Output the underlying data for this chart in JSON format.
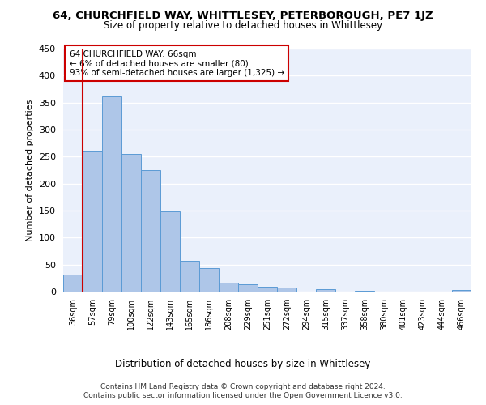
{
  "title_line1": "64, CHURCHFIELD WAY, WHITTLESEY, PETERBOROUGH, PE7 1JZ",
  "title_line2": "Size of property relative to detached houses in Whittlesey",
  "xlabel": "Distribution of detached houses by size in Whittlesey",
  "ylabel": "Number of detached properties",
  "footer_line1": "Contains HM Land Registry data © Crown copyright and database right 2024.",
  "footer_line2": "Contains public sector information licensed under the Open Government Licence v3.0.",
  "categories": [
    "36sqm",
    "57sqm",
    "79sqm",
    "100sqm",
    "122sqm",
    "143sqm",
    "165sqm",
    "186sqm",
    "208sqm",
    "229sqm",
    "251sqm",
    "272sqm",
    "294sqm",
    "315sqm",
    "337sqm",
    "358sqm",
    "380sqm",
    "401sqm",
    "423sqm",
    "444sqm",
    "466sqm"
  ],
  "values": [
    32,
    260,
    362,
    255,
    225,
    148,
    57,
    43,
    17,
    13,
    9,
    7,
    0,
    5,
    0,
    2,
    0,
    0,
    0,
    0,
    3
  ],
  "bar_color": "#aec6e8",
  "bar_edge_color": "#5b9bd5",
  "background_color": "#eaf0fb",
  "annotation_text": "64 CHURCHFIELD WAY: 66sqm\n← 6% of detached houses are smaller (80)\n93% of semi-detached houses are larger (1,325) →",
  "annotation_box_color": "#ffffff",
  "annotation_box_edge_color": "#cc0000",
  "vline_color": "#cc0000",
  "vline_x_index": 1,
  "ylim": [
    0,
    450
  ],
  "yticks": [
    0,
    50,
    100,
    150,
    200,
    250,
    300,
    350,
    400,
    450
  ]
}
